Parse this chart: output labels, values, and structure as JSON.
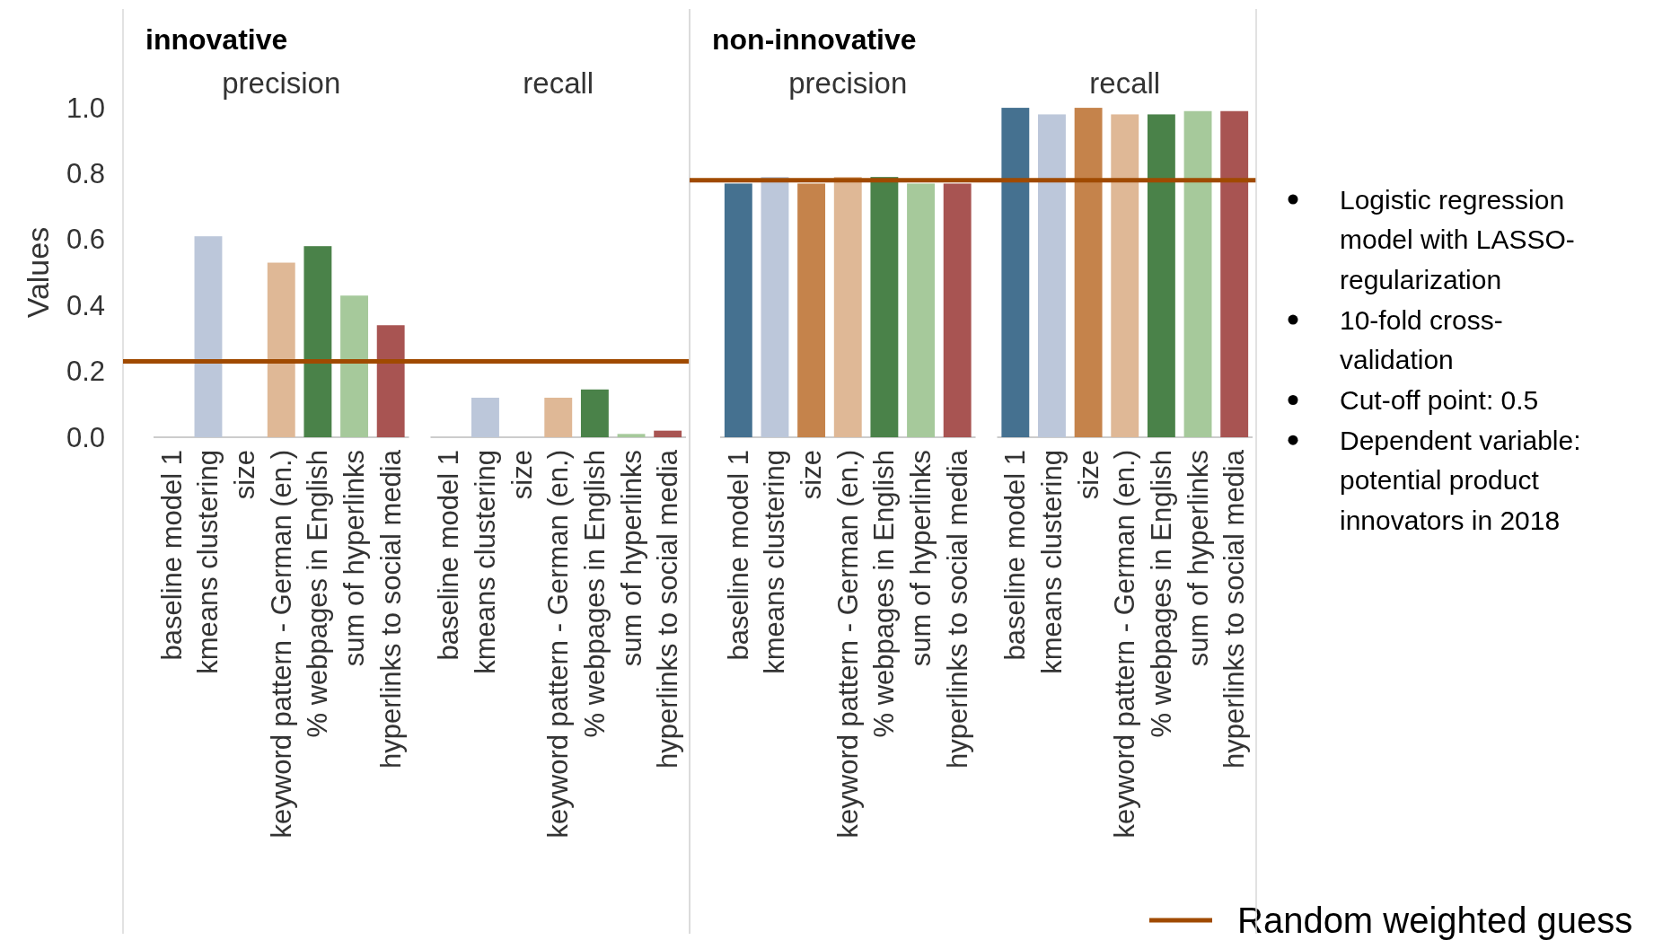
{
  "chart_data": [
    {
      "type": "bar",
      "title": "innovative",
      "ylabel": "Values",
      "categories": [
        "baseline model 1",
        "kmeans clustering",
        "size",
        "keyword pattern - German (en.)",
        "% webpages in English",
        "sum of hyperlinks",
        "hyperlinks to social media",
        "baseline model 1",
        "kmeans clustering",
        "size",
        "keyword pattern - German (en.)",
        "% webpages in English",
        "sum of hyperlinks",
        "hyperlinks to social media"
      ],
      "values": [
        0,
        0.61,
        0,
        0.53,
        0.58,
        0.43,
        0.34,
        0,
        0.12,
        0,
        0.12,
        0.145,
        0.01,
        0.02
      ],
      "colors": [
        "#457190",
        "#bcc7da",
        "#c5834b",
        "#dfb896",
        "#4a8249",
        "#a6c99b",
        "#a85452",
        "#457190",
        "#bcc7da",
        "#c5834b",
        "#dfb896",
        "#4a8249",
        "#a6c99b",
        "#a85452"
      ],
      "annotations": [
        "precision",
        "recall"
      ],
      "ylim": [
        0,
        1.3
      ],
      "yticks": [
        {
          "value": 0,
          "label": "0.0"
        },
        {
          "value": 0.2,
          "label": "0.2"
        },
        {
          "value": 0.4,
          "label": "0.4"
        },
        {
          "value": 0.6,
          "label": "0.6"
        },
        {
          "value": 0.8,
          "label": "0.8"
        },
        {
          "value": 1,
          "label": "1.0"
        }
      ],
      "ref_lines": [
        {
          "axis": "y",
          "value": 0.23,
          "color": "#a04a00"
        }
      ],
      "grid": false
    },
    {
      "type": "bar",
      "title": "non-innovative",
      "categories": [
        "baseline model 1",
        "kmeans clustering",
        "size",
        "keyword pattern - German (en.)",
        "% webpages in English",
        "sum of hyperlinks",
        "hyperlinks to social media",
        "baseline model 1",
        "kmeans clustering",
        "size",
        "keyword pattern - German (en.)",
        "% webpages in English",
        "sum of hyperlinks",
        "hyperlinks to social media"
      ],
      "values": [
        0.77,
        0.79,
        0.77,
        0.79,
        0.79,
        0.77,
        0.77,
        1.0,
        0.98,
        1.0,
        0.98,
        0.98,
        0.99,
        0.99
      ],
      "colors": [
        "#457190",
        "#bcc7da",
        "#c5834b",
        "#dfb896",
        "#4a8249",
        "#a6c99b",
        "#a85452",
        "#457190",
        "#bcc7da",
        "#c5834b",
        "#dfb896",
        "#4a8249",
        "#a6c99b",
        "#a85452"
      ],
      "annotations": [
        "precision",
        "recall"
      ],
      "ylim": [
        0,
        1.3
      ],
      "tick_labels": "x",
      "ref_lines": [
        {
          "axis": "y",
          "value": 0.78,
          "color": "#a04a00",
          "label": "Random weighted guess"
        }
      ],
      "legend": "bottom right",
      "grid": false
    },
    {
      "type": "other",
      "annotations": [
        "Logistic regression model with LASSO-regularization",
        "10-fold cross-validation",
        "Cut-off point: 0.5",
        "Dependent variable: potential product innovators in 2018"
      ]
    }
  ]
}
